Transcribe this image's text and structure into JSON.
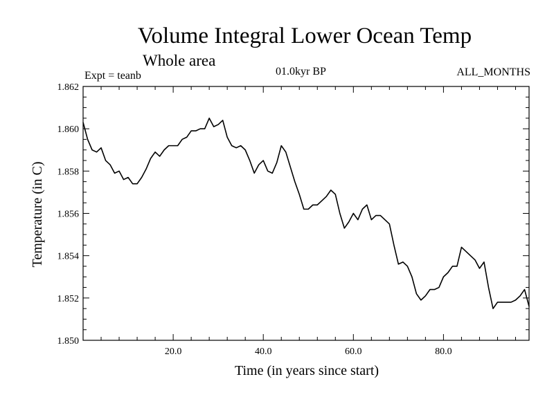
{
  "chart_data": {
    "type": "line",
    "title": "Volume Integral Lower Ocean Temp",
    "subtitle": "Whole area",
    "annotations": {
      "expt": "Expt = teanb",
      "period": "01.0kyr BP",
      "months": "ALL_MONTHS"
    },
    "xlabel": "Time (in years since start)",
    "ylabel": "Temperature (in C)",
    "xlim": [
      0,
      99
    ],
    "ylim": [
      1.85,
      1.862
    ],
    "x_ticks": [
      20,
      40,
      60,
      80
    ],
    "x_tick_labels": [
      "20.0",
      "40.0",
      "60.0",
      "80.0"
    ],
    "y_ticks": [
      1.85,
      1.852,
      1.854,
      1.856,
      1.858,
      1.86,
      1.862
    ],
    "y_tick_labels": [
      "1.850",
      "1.852",
      "1.854",
      "1.856",
      "1.858",
      "1.860",
      "1.862"
    ],
    "grid": false,
    "series": [
      {
        "name": "Temperature",
        "color": "#000000",
        "x": [
          0,
          1,
          2,
          3,
          4,
          5,
          6,
          7,
          8,
          9,
          10,
          11,
          12,
          13,
          14,
          15,
          16,
          17,
          18,
          19,
          20,
          21,
          22,
          23,
          24,
          25,
          26,
          27,
          28,
          29,
          30,
          31,
          32,
          33,
          34,
          35,
          36,
          37,
          38,
          39,
          40,
          41,
          42,
          43,
          44,
          45,
          46,
          47,
          48,
          49,
          50,
          51,
          52,
          53,
          54,
          55,
          56,
          57,
          58,
          59,
          60,
          61,
          62,
          63,
          64,
          65,
          66,
          67,
          68,
          69,
          70,
          71,
          72,
          73,
          74,
          75,
          76,
          77,
          78,
          79,
          80,
          81,
          82,
          83,
          84,
          85,
          86,
          87,
          88,
          89,
          90,
          91,
          92,
          93,
          94,
          95,
          96,
          97,
          98,
          99
        ],
        "values": [
          1.8603,
          1.8595,
          1.859,
          1.8589,
          1.8591,
          1.8585,
          1.8583,
          1.8579,
          1.858,
          1.8576,
          1.8577,
          1.8574,
          1.8574,
          1.8577,
          1.8581,
          1.8586,
          1.8589,
          1.8587,
          1.859,
          1.8592,
          1.8592,
          1.8592,
          1.8595,
          1.8596,
          1.8599,
          1.8599,
          1.86,
          1.86,
          1.8605,
          1.8601,
          1.8602,
          1.8604,
          1.8596,
          1.8592,
          1.8591,
          1.8592,
          1.859,
          1.8585,
          1.8579,
          1.8583,
          1.8585,
          1.858,
          1.8579,
          1.8584,
          1.8592,
          1.8589,
          1.8582,
          1.8575,
          1.8569,
          1.8562,
          1.8562,
          1.8564,
          1.8564,
          1.8566,
          1.8568,
          1.8571,
          1.8569,
          1.856,
          1.8553,
          1.8556,
          1.856,
          1.8557,
          1.8562,
          1.8564,
          1.8557,
          1.8559,
          1.8559,
          1.8557,
          1.8555,
          1.8545,
          1.8536,
          1.8537,
          1.8535,
          1.853,
          1.8522,
          1.8519,
          1.8521,
          1.8524,
          1.8524,
          1.8525,
          1.853,
          1.8532,
          1.8535,
          1.8535,
          1.8544,
          1.8542,
          1.854,
          1.8538,
          1.8534,
          1.8537,
          1.8525,
          1.8515,
          1.8518,
          1.8518,
          1.8518,
          1.8518,
          1.8519,
          1.8521,
          1.8524,
          1.8516
        ]
      }
    ]
  }
}
